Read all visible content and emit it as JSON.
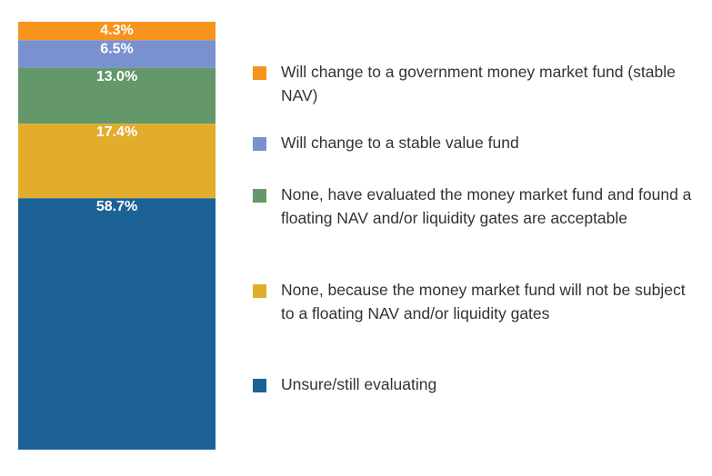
{
  "chart_data": {
    "type": "bar",
    "stacked": true,
    "orientation": "vertical",
    "title": "",
    "categories": [
      ""
    ],
    "series": [
      {
        "name": "Will change to a government money market fund (stable NAV)",
        "values": [
          4.3
        ],
        "label": "4.3%",
        "color": "#f7941d"
      },
      {
        "name": "Will change to a stable value fund",
        "values": [
          6.5
        ],
        "label": "6.5%",
        "color": "#7a91cf"
      },
      {
        "name": "None, have evaluated the money market fund and found a floating NAV and/or liquidity gates are acceptable",
        "values": [
          13.0
        ],
        "label": "13.0%",
        "color": "#64986a"
      },
      {
        "name": "None, because the money market fund will not be subject to a floating NAV and/or liquidity gates",
        "values": [
          17.4
        ],
        "label": "17.4%",
        "color": "#e2ac2c"
      },
      {
        "name": "Unsure/still evaluating",
        "values": [
          58.7
        ],
        "label": "58.7%",
        "color": "#1c6297"
      }
    ],
    "ylim": [
      0,
      100
    ],
    "grid": false,
    "legend_position": "right",
    "stack_order": "top-to-bottom"
  }
}
